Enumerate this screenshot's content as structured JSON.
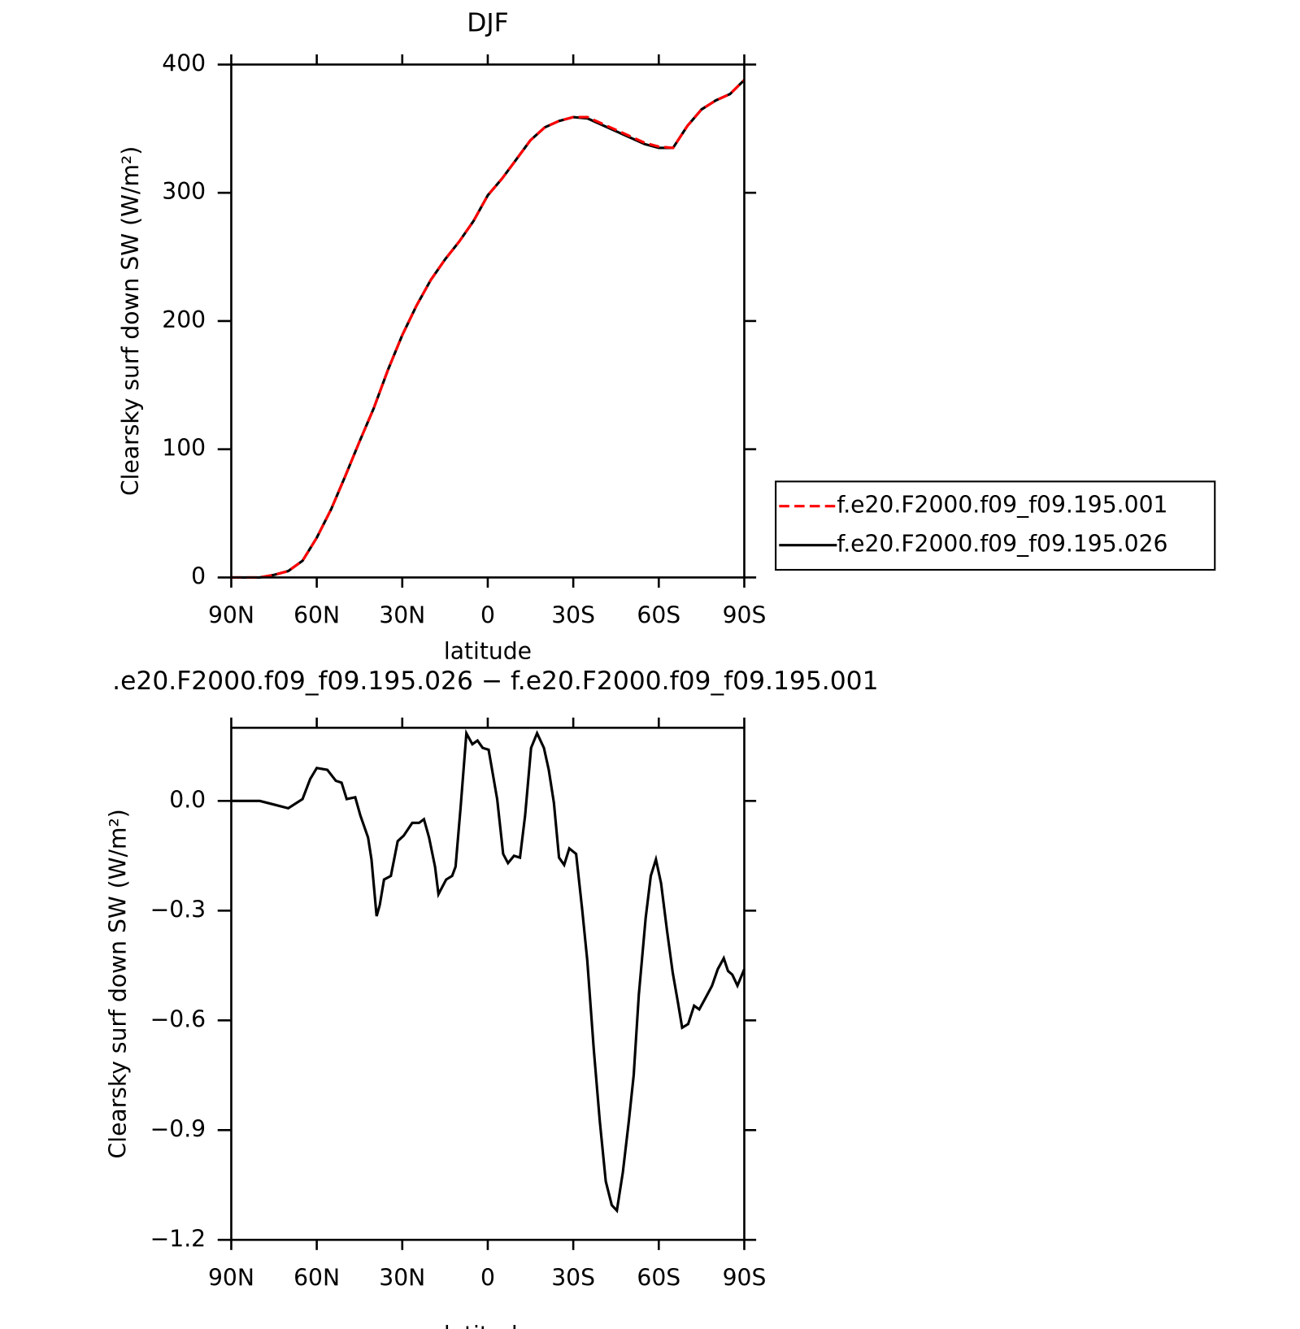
{
  "chart_data": [
    {
      "type": "line",
      "title": "DJF",
      "x_label": "latitude",
      "y_label": "Clearsky surf down SW (W/m²)",
      "xlim": [
        90,
        -90
      ],
      "xticks": [
        {
          "value": 90,
          "label": "90N"
        },
        {
          "value": 60,
          "label": "60N"
        },
        {
          "value": 30,
          "label": "30N"
        },
        0,
        {
          "value": -30,
          "label": "30S"
        },
        {
          "value": -60,
          "label": "60S"
        },
        {
          "value": -90,
          "label": "90S"
        }
      ],
      "ylim": [
        0,
        400
      ],
      "yticks": [
        0,
        100,
        200,
        300,
        400
      ],
      "grid": false,
      "legend": "right",
      "x": [
        90,
        85,
        80,
        75,
        70,
        65,
        60,
        55,
        50,
        45,
        40,
        35,
        30,
        25,
        20,
        15,
        10,
        5,
        0,
        -5,
        -10,
        -15,
        -20,
        -25,
        -30,
        -35,
        -40,
        -45,
        -50,
        -55,
        -60,
        -65,
        -70,
        -75,
        -80,
        -85,
        -90
      ],
      "series": [
        {
          "name": "f.e20.F2000.f09_f09.195.001",
          "color": "#ff0000",
          "linestyle": "dashed",
          "values": [
            0,
            0,
            0,
            2,
            5,
            13,
            31,
            53,
            79,
            106,
            132,
            162,
            189,
            212,
            232,
            248,
            262,
            278,
            298,
            311,
            326,
            341,
            351,
            356,
            359,
            359,
            354,
            349,
            344,
            339,
            336,
            335,
            352,
            365,
            372,
            377,
            388
          ]
        },
        {
          "name": "f.e20.F2000.f09_f09.195.026",
          "color": "#000000",
          "linestyle": "solid",
          "values": [
            0,
            0,
            0,
            2,
            5,
            13,
            31,
            53,
            79,
            106,
            132,
            162,
            189,
            212,
            232,
            248,
            262,
            278,
            298,
            311,
            326,
            341,
            351,
            356,
            359,
            358,
            353,
            348,
            343,
            338,
            335,
            335,
            352,
            365,
            372,
            377,
            388
          ]
        }
      ]
    },
    {
      "type": "line",
      "title": ".e20.F2000.f09_f09.195.026 − f.e20.F2000.f09_f09.195.001",
      "x_label": "latitude",
      "y_label": "Clearsky surf down SW (W/m²)",
      "xlim": [
        90,
        -90
      ],
      "xticks": [
        {
          "value": 90,
          "label": "90N"
        },
        {
          "value": 60,
          "label": "60N"
        },
        {
          "value": 30,
          "label": "30N"
        },
        0,
        {
          "value": -30,
          "label": "30S"
        },
        {
          "value": -60,
          "label": "60S"
        },
        {
          "value": -90,
          "label": "90S"
        }
      ],
      "ylim": [
        -1.2,
        0.2
      ],
      "yticks": [
        {
          "value": -1.2,
          "label": "−1.2"
        },
        {
          "value": -0.9,
          "label": "−0.9"
        },
        {
          "value": -0.6,
          "label": "−0.6"
        },
        {
          "value": -0.3,
          "label": "−0.3"
        },
        {
          "value": 0,
          "label": "0.0"
        }
      ],
      "grid": false,
      "x": [
        90,
        80,
        75,
        70,
        65,
        62.3,
        60,
        56.3,
        53.3,
        51.3,
        49.5,
        46.5,
        44.7,
        42,
        40.8,
        39,
        37.9,
        36.4,
        34,
        31.6,
        29.5,
        26.5,
        24.1,
        22.4,
        20.6,
        18.5,
        17.3,
        14.6,
        12.5,
        11.3,
        9.5,
        7.5,
        5.4,
        3.6,
        1.8,
        -0.3,
        -3.3,
        -5.4,
        -7.1,
        -9.2,
        -11.3,
        -13.1,
        -15.2,
        -17.3,
        -19.7,
        -21.4,
        -23.2,
        -25,
        -26.8,
        -28.6,
        -31,
        -33.1,
        -34.9,
        -37.2,
        -39.3,
        -41.4,
        -43.5,
        -45.3,
        -47.4,
        -49.5,
        -51.2,
        -53,
        -55.4,
        -57.2,
        -59,
        -60.8,
        -62.9,
        -64.9,
        -66.7,
        -68.2,
        -70.3,
        -72.4,
        -74.2,
        -76.3,
        -78.7,
        -80.7,
        -82.8,
        -84.3,
        -85.8,
        -87.6,
        -90
      ],
      "series": [
        {
          "color": "#000000",
          "linestyle": "solid",
          "values": [
            0,
            0,
            -0.01,
            -0.02,
            0.005,
            0.06,
            0.09,
            0.085,
            0.055,
            0.05,
            0.005,
            0.01,
            -0.04,
            -0.1,
            -0.16,
            -0.315,
            -0.285,
            -0.215,
            -0.205,
            -0.11,
            -0.095,
            -0.06,
            -0.06,
            -0.05,
            -0.1,
            -0.18,
            -0.255,
            -0.215,
            -0.205,
            -0.18,
            -0.015,
            0.185,
            0.155,
            0.165,
            0.145,
            0.14,
            0.005,
            -0.145,
            -0.17,
            -0.15,
            -0.155,
            -0.04,
            0.145,
            0.185,
            0.145,
            0.085,
            -0.005,
            -0.155,
            -0.175,
            -0.13,
            -0.145,
            -0.295,
            -0.435,
            -0.68,
            -0.875,
            -1.04,
            -1.105,
            -1.12,
            -1.015,
            -0.875,
            -0.75,
            -0.53,
            -0.32,
            -0.205,
            -0.16,
            -0.225,
            -0.355,
            -0.47,
            -0.55,
            -0.62,
            -0.61,
            -0.56,
            -0.57,
            -0.54,
            -0.505,
            -0.46,
            -0.43,
            -0.465,
            -0.475,
            -0.505,
            -0.46
          ]
        }
      ]
    }
  ]
}
